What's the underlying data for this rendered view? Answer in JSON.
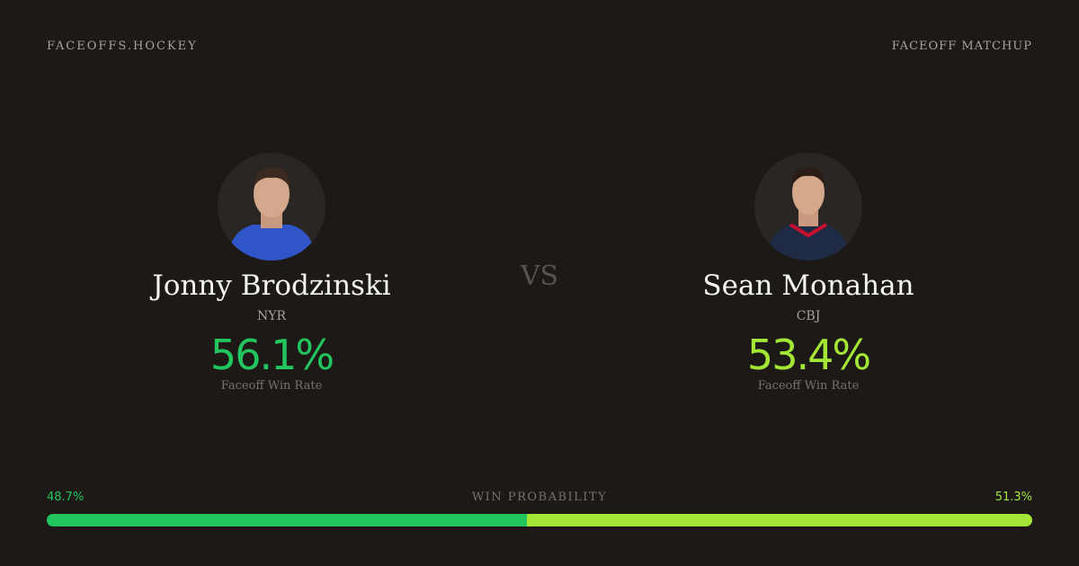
{
  "header": {
    "brand": "FACEOFFS.HOCKEY",
    "label": "FACEOFF MATCHUP"
  },
  "players": [
    {
      "name": "Jonny Brodzinski",
      "team": "NYR",
      "rate": "56.1%",
      "rate_label": "Faceoff Win Rate",
      "color": "#22c55e"
    },
    {
      "name": "Sean Monahan",
      "team": "CBJ",
      "rate": "53.4%",
      "rate_label": "Faceoff Win Rate",
      "color": "#a3e635"
    }
  ],
  "versus": "VS",
  "win_probability": {
    "label": "WIN PROBABILITY",
    "left": {
      "value": 48.7,
      "label": "48.7%"
    },
    "right": {
      "value": 51.3,
      "label": "51.3%"
    }
  }
}
